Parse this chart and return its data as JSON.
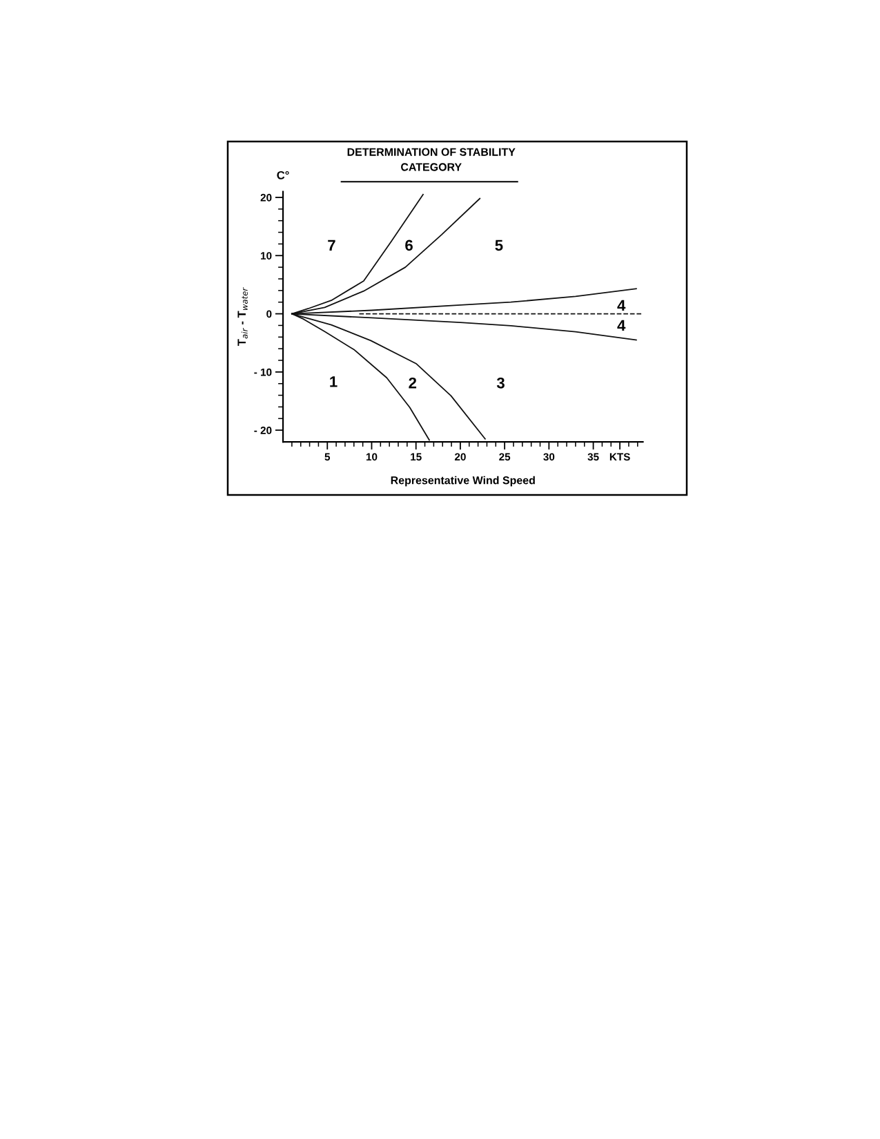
{
  "chart_data": {
    "type": "line",
    "title": "DETERMINATION OF STABILITY\nCATEGORY",
    "xlabel": "Representative Wind Speed",
    "ylabel": "T$_{air}$ - T$_{water}$",
    "series": [
      {
        "color": "#111111",
        "x": [
          1,
          2.86,
          5.45,
          9.1,
          12.2,
          15.8
        ],
        "values": [
          0,
          0.9,
          2.3,
          5.65,
          12.4,
          20.5
        ]
      },
      {
        "color": "#111111",
        "x": [
          1,
          4.7,
          9.1,
          13.8,
          17.9,
          22.2
        ],
        "values": [
          0,
          1.1,
          3.9,
          8.0,
          13.6,
          19.8
        ]
      },
      {
        "color": "#111111",
        "x": [
          1,
          10,
          20,
          25.7,
          33,
          39.85
        ],
        "values": [
          0,
          0.6,
          1.5,
          2.0,
          3.0,
          4.3
        ]
      },
      {
        "color": "#111111",
        "x": [
          8.6,
          40.5
        ],
        "values": [
          0,
          0
        ],
        "line_style": "dashed"
      },
      {
        "color": "#111111",
        "x": [
          1,
          10,
          20,
          25.7,
          33,
          39.85
        ],
        "values": [
          0,
          -0.7,
          -1.5,
          -2.05,
          -3.1,
          -4.5
        ]
      },
      {
        "color": "#111111",
        "x": [
          1,
          2.3,
          4.7,
          8.05,
          11.7,
          14.3,
          16.5
        ],
        "values": [
          0,
          -0.9,
          -3.05,
          -6.2,
          -11.0,
          -16.1,
          -21.7
        ]
      },
      {
        "color": "#111111",
        "x": [
          1,
          5.45,
          9.9,
          15.05,
          18.95,
          22.8
        ],
        "values": [
          0,
          -1.9,
          -4.6,
          -8.6,
          -14.1,
          -21.5
        ]
      }
    ],
    "xlim": [
      0,
      40.6
    ],
    "xticks": [
      {
        "value": 1,
        "label": null
      },
      {
        "value": 2,
        "label": null
      },
      {
        "value": 3,
        "label": null
      },
      {
        "value": 4,
        "label": null
      },
      5,
      {
        "value": 6,
        "label": null
      },
      {
        "value": 7,
        "label": null
      },
      {
        "value": 8,
        "label": null
      },
      {
        "value": 9,
        "label": null
      },
      10,
      {
        "value": 11,
        "label": null
      },
      {
        "value": 12,
        "label": null
      },
      {
        "value": 13,
        "label": null
      },
      {
        "value": 14,
        "label": null
      },
      15,
      {
        "value": 16,
        "label": null
      },
      {
        "value": 17,
        "label": null
      },
      {
        "value": 18,
        "label": null
      },
      {
        "value": 19,
        "label": null
      },
      20,
      {
        "value": 21,
        "label": null
      },
      {
        "value": 22,
        "label": null
      },
      {
        "value": 23,
        "label": null
      },
      {
        "value": 24,
        "label": null
      },
      25,
      {
        "value": 26,
        "label": null
      },
      {
        "value": 27,
        "label": null
      },
      {
        "value": 28,
        "label": null
      },
      {
        "value": 29,
        "label": null
      },
      30,
      {
        "value": 31,
        "label": null
      },
      {
        "value": 32,
        "label": null
      },
      {
        "value": 33,
        "label": null
      },
      {
        "value": 34,
        "label": null
      },
      35,
      {
        "value": 36,
        "label": null
      },
      {
        "value": 37,
        "label": null
      },
      {
        "value": 38,
        "label": "KTS"
      },
      {
        "value": 39,
        "label": null
      },
      {
        "value": 40,
        "label": null
      }
    ],
    "ylim": [
      -22,
      21
    ],
    "yticks": [
      {
        "value": -20,
        "label": "- 20"
      },
      {
        "value": -18,
        "label": null
      },
      {
        "value": -16,
        "label": null
      },
      {
        "value": -14,
        "label": null
      },
      {
        "value": -12,
        "label": null
      },
      {
        "value": -10,
        "label": "- 10"
      },
      {
        "value": -8,
        "label": null
      },
      {
        "value": -6,
        "label": null
      },
      {
        "value": -4,
        "label": null
      },
      {
        "value": -2,
        "label": null
      },
      0,
      {
        "value": 2,
        "label": null
      },
      {
        "value": 4,
        "label": null
      },
      {
        "value": 6,
        "label": null
      },
      {
        "value": 8,
        "label": null
      },
      10,
      {
        "value": 12,
        "label": null
      },
      {
        "value": 14,
        "label": null
      },
      {
        "value": 16,
        "label": null
      },
      {
        "value": 18,
        "label": null
      },
      20
    ],
    "grid": false,
    "line_style": "solid",
    "marker": "none",
    "annotations": [
      "C°",
      "7",
      "6",
      "5",
      "4",
      "4",
      "1",
      "2",
      "3"
    ]
  }
}
